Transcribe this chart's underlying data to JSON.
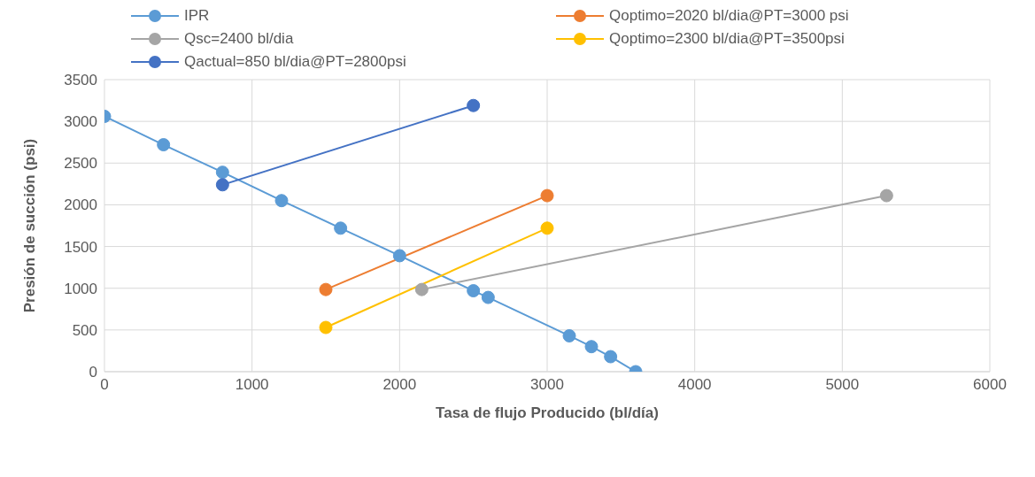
{
  "chart_data": {
    "type": "line",
    "xlabel": "Tasa de flujo Producido (bl/día)",
    "ylabel": "Presión de succión (psi)",
    "xlim": [
      0,
      6000
    ],
    "xticks": [
      0,
      1000,
      2000,
      3000,
      4000,
      5000,
      6000
    ],
    "ylim": [
      0,
      3500
    ],
    "yticks": [
      0,
      500,
      1000,
      1500,
      2000,
      2500,
      3000,
      3500
    ],
    "grid": true,
    "legend": "top",
    "marker": "circle",
    "line_style": "solid",
    "series": [
      {
        "name": "IPR",
        "color": "#5b9bd5",
        "x": [
          0,
          400,
          800,
          1200,
          1600,
          2000,
          2500,
          2600,
          3150,
          3300,
          3430,
          3600
        ],
        "values": [
          3060,
          2720,
          2390,
          2050,
          1720,
          1390,
          970,
          890,
          430,
          300,
          180,
          0
        ]
      },
      {
        "name": "Qoptimo=2020 bl/dia@PT=3000 psi",
        "color": "#ed7d31",
        "x": [
          1500,
          3000
        ],
        "values": [
          985,
          2110
        ]
      },
      {
        "name": "Qsc=2400 bl/dia",
        "color": "#a5a5a5",
        "x": [
          2150,
          5300
        ],
        "values": [
          985,
          2110
        ]
      },
      {
        "name": "Qoptimo=2300 bl/dia@PT=3500psi",
        "color": "#ffc000",
        "x": [
          1500,
          3000
        ],
        "values": [
          530,
          1720
        ]
      },
      {
        "name": "Qactual=850 bl/dia@PT=2800psi",
        "color": "#4472c4",
        "x": [
          800,
          2500
        ],
        "values": [
          2240,
          3190
        ]
      }
    ]
  }
}
